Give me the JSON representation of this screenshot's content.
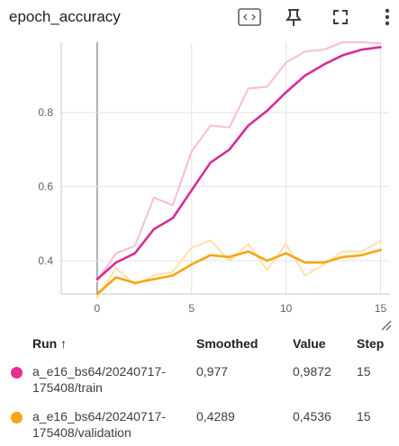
{
  "header": {
    "title": "epoch_accuracy",
    "icons": [
      "fit-domain-icon",
      "pin-icon",
      "fullscreen-icon",
      "more-vert-icon"
    ]
  },
  "chart_data": {
    "type": "line",
    "title": "epoch_accuracy",
    "xlabel": "",
    "ylabel": "",
    "xlim": [
      -1.9,
      15.5
    ],
    "ylim": [
      0.31,
      0.99
    ],
    "x_ticks": [
      "0",
      "5",
      "10",
      "15"
    ],
    "y_ticks": [
      "0.4",
      "0.6",
      "0.8"
    ],
    "grid": true,
    "x": [
      0,
      1,
      2,
      3,
      4,
      5,
      6,
      7,
      8,
      9,
      10,
      11,
      12,
      13,
      14,
      15
    ],
    "series": [
      {
        "name": "a_e16_bs64/20240717-175408/train",
        "kind": "raw",
        "color": "#f6c1da",
        "values": [
          0.345,
          0.42,
          0.44,
          0.57,
          0.55,
          0.695,
          0.765,
          0.76,
          0.865,
          0.87,
          0.935,
          0.965,
          0.97,
          0.99,
          0.99,
          0.9872
        ]
      },
      {
        "name": "a_e16_bs64/20240717-175408/train",
        "kind": "smoothed",
        "color": "#d62d97",
        "values": [
          0.35,
          0.395,
          0.42,
          0.485,
          0.515,
          0.59,
          0.665,
          0.7,
          0.765,
          0.805,
          0.855,
          0.9,
          0.93,
          0.955,
          0.97,
          0.977
        ]
      },
      {
        "name": "a_e16_bs64/20240717-175408/validation",
        "kind": "raw",
        "color": "#fde3b0",
        "values": [
          0.3,
          0.38,
          0.335,
          0.36,
          0.37,
          0.435,
          0.455,
          0.4,
          0.445,
          0.375,
          0.445,
          0.36,
          0.39,
          0.425,
          0.425,
          0.4536
        ]
      },
      {
        "name": "a_e16_bs64/20240717-175408/validation",
        "kind": "smoothed",
        "color": "#f5a611",
        "values": [
          0.31,
          0.355,
          0.34,
          0.35,
          0.36,
          0.39,
          0.415,
          0.41,
          0.425,
          0.4,
          0.42,
          0.395,
          0.395,
          0.41,
          0.415,
          0.4289
        ]
      }
    ]
  },
  "table": {
    "headers": {
      "run": "Run ↑",
      "smoothed": "Smoothed",
      "value": "Value",
      "step": "Step"
    },
    "rows": [
      {
        "color": "#e62e94",
        "run_line1": "a_e16_bs64/20240717-",
        "run_line2": "175408/train",
        "smoothed": "0,977",
        "value": "0,9872",
        "step": "15"
      },
      {
        "color": "#f5a611",
        "run_line1": "a_e16_bs64/20240717-",
        "run_line2": "175408/validation",
        "smoothed": "0,4289",
        "value": "0,4536",
        "step": "15"
      }
    ]
  }
}
